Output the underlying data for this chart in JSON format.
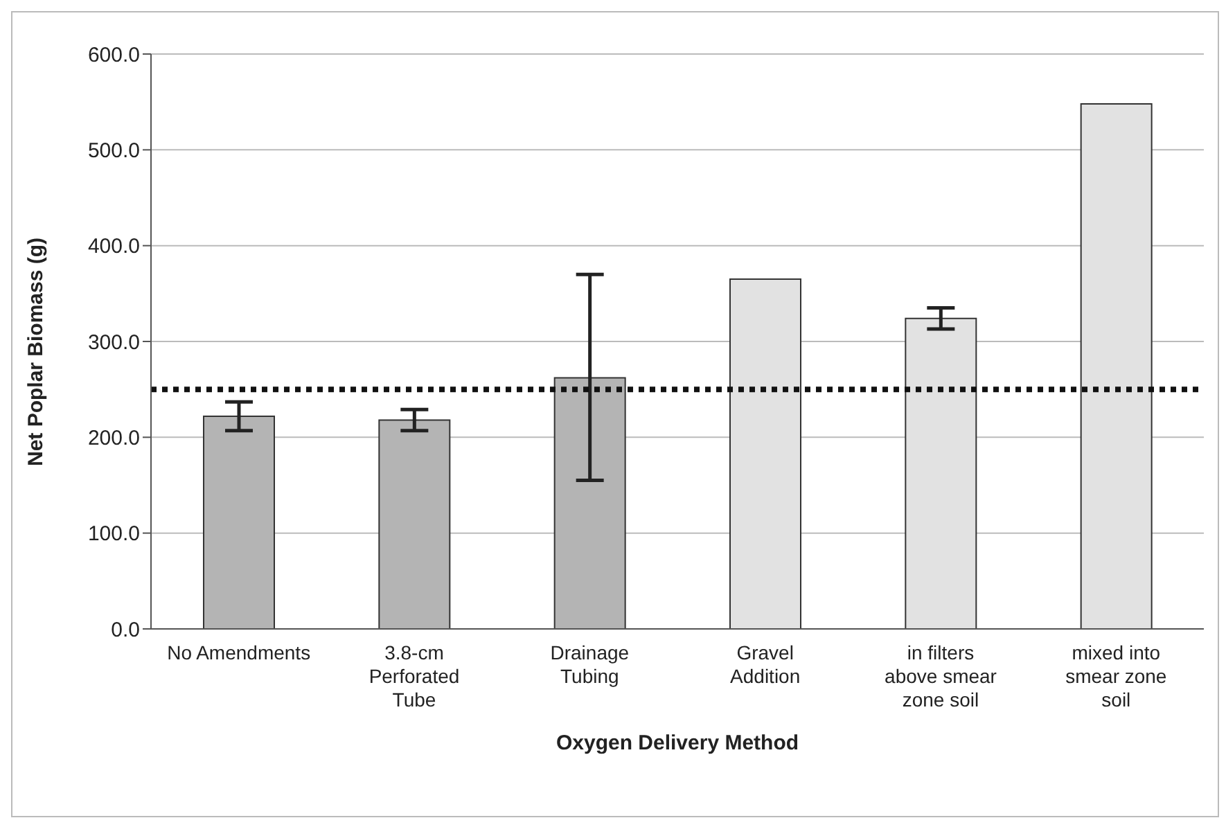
{
  "chart_data": {
    "type": "bar",
    "xlabel": "Oxygen Delivery Method",
    "ylabel": "Net Poplar Biomass (g)",
    "categories": [
      "No Amendments",
      "3.8-cm Perforated Tube",
      "Drainage Tubing",
      "Gravel Addition",
      "in filters above smear zone soil",
      "mixed into smear zone soil"
    ],
    "values": [
      222,
      218,
      262,
      365,
      324,
      548
    ],
    "colors": [
      "#b4b4b4",
      "#b4b4b4",
      "#b4b4b4",
      "#e2e2e2",
      "#e2e2e2",
      "#e2e2e2"
    ],
    "errors": [
      15,
      11,
      [
        155,
        370
      ],
      null,
      11,
      null
    ],
    "ylim": [
      0,
      600
    ],
    "yticks": [
      {
        "value": 0,
        "label": "0.0"
      },
      {
        "value": 100,
        "label": "100.0"
      },
      {
        "value": 200,
        "label": "200.0"
      },
      {
        "value": 300,
        "label": "300.0"
      },
      {
        "value": 400,
        "label": "400.0"
      },
      {
        "value": 500,
        "label": "500.0"
      },
      {
        "value": 600,
        "label": "600.0"
      }
    ],
    "grid": "y",
    "ref_lines": [
      {
        "axis": "y",
        "value": 250,
        "color": "#111111",
        "line_style": "dotted"
      }
    ]
  }
}
